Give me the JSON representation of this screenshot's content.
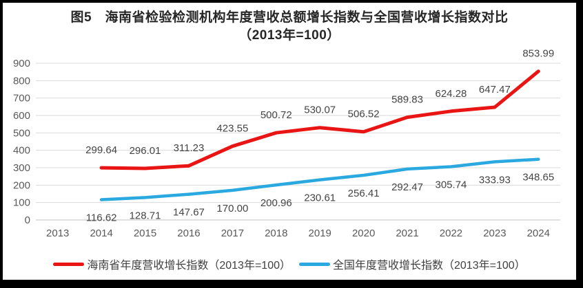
{
  "window": {
    "frame_color": "#000000",
    "background": "#ffffff"
  },
  "title": {
    "line1": "图5　海南省检验检测机构年度营收总额增长指数与全国营收增长指数对比",
    "line2": "（2013年=100）"
  },
  "chart_data": {
    "type": "line",
    "title": "图5 海南省检验检测机构年度营收总额增长指数与全国营收增长指数对比（2013年=100）",
    "categories": [
      "2013",
      "2014",
      "2015",
      "2016",
      "2017",
      "2018",
      "2019",
      "2020",
      "2021",
      "2022",
      "2023",
      "2024"
    ],
    "xlabel": "",
    "ylabel": "",
    "ylim": [
      0,
      900
    ],
    "y_ticks": [
      0,
      100,
      200,
      300,
      400,
      500,
      600,
      700,
      800,
      900
    ],
    "grid": true,
    "legend_position": "bottom",
    "series": [
      {
        "name": "海南省年度营收增长指数（2013年=100）",
        "color": "#e91515",
        "start_category": "2014",
        "values": [
          299.64,
          296.01,
          311.23,
          423.55,
          500.72,
          530.07,
          506.52,
          589.83,
          624.28,
          647.47,
          853.99
        ],
        "value_labels": [
          "299.64",
          "296.01",
          "311.23",
          "423.55",
          "500.72",
          "530.07",
          "506.52",
          "589.83",
          "624.28",
          "647.47",
          "853.99"
        ],
        "label_side": "above"
      },
      {
        "name": "全国年度营收增长指数（2013年=100）",
        "color": "#2aa8e0",
        "start_category": "2014",
        "values": [
          116.62,
          128.71,
          147.67,
          170.0,
          200.96,
          230.61,
          256.41,
          292.47,
          305.74,
          333.93,
          348.65
        ],
        "value_labels": [
          "116.62",
          "128.71",
          "147.67",
          "170.00",
          "200.96",
          "230.61",
          "256.41",
          "292.47",
          "305.74",
          "333.93",
          "348.65"
        ],
        "label_side": "below"
      }
    ],
    "colors": {
      "gridline": "#d9d9d9",
      "zero_line": "#c0c0c0",
      "tick_text": "#595959",
      "data_label_text": "#444444"
    }
  },
  "legend": {
    "items": [
      {
        "label": "海南省年度营收增长指数（2013年=100）",
        "color": "#e91515"
      },
      {
        "label": "全国年度营收增长指数（2013年=100）",
        "color": "#2aa8e0"
      }
    ]
  }
}
